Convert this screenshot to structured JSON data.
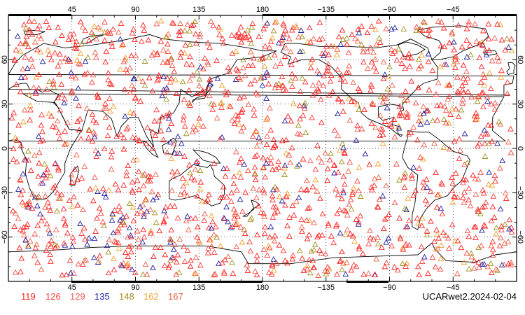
{
  "map": {
    "lon_ticks": [
      "45",
      "90",
      "135",
      "180",
      "−135",
      "−90",
      "−45"
    ],
    "lat_ticks": [
      "60",
      "30",
      "0",
      "−30",
      "−60"
    ],
    "lon_tick_values": [
      45,
      90,
      135,
      180,
      225,
      270,
      315
    ],
    "lat_tick_values": [
      60,
      30,
      0,
      -30,
      -60
    ],
    "lon_range": [
      0,
      360
    ],
    "lat_range": [
      -90,
      90
    ],
    "grid": "dotted",
    "marker": "open-triangle",
    "source_label": "UCARwet2.2024-02-04"
  },
  "legend": [
    {
      "label": "119",
      "color": "#ff2020"
    },
    {
      "label": "126",
      "color": "#ff3a3a"
    },
    {
      "label": "129",
      "color": "#f05a50"
    },
    {
      "label": "135",
      "color": "#2020a0"
    },
    {
      "label": "148",
      "color": "#a09020"
    },
    {
      "label": "162",
      "color": "#f0a030"
    },
    {
      "label": "167",
      "color": "#f06040"
    }
  ]
}
